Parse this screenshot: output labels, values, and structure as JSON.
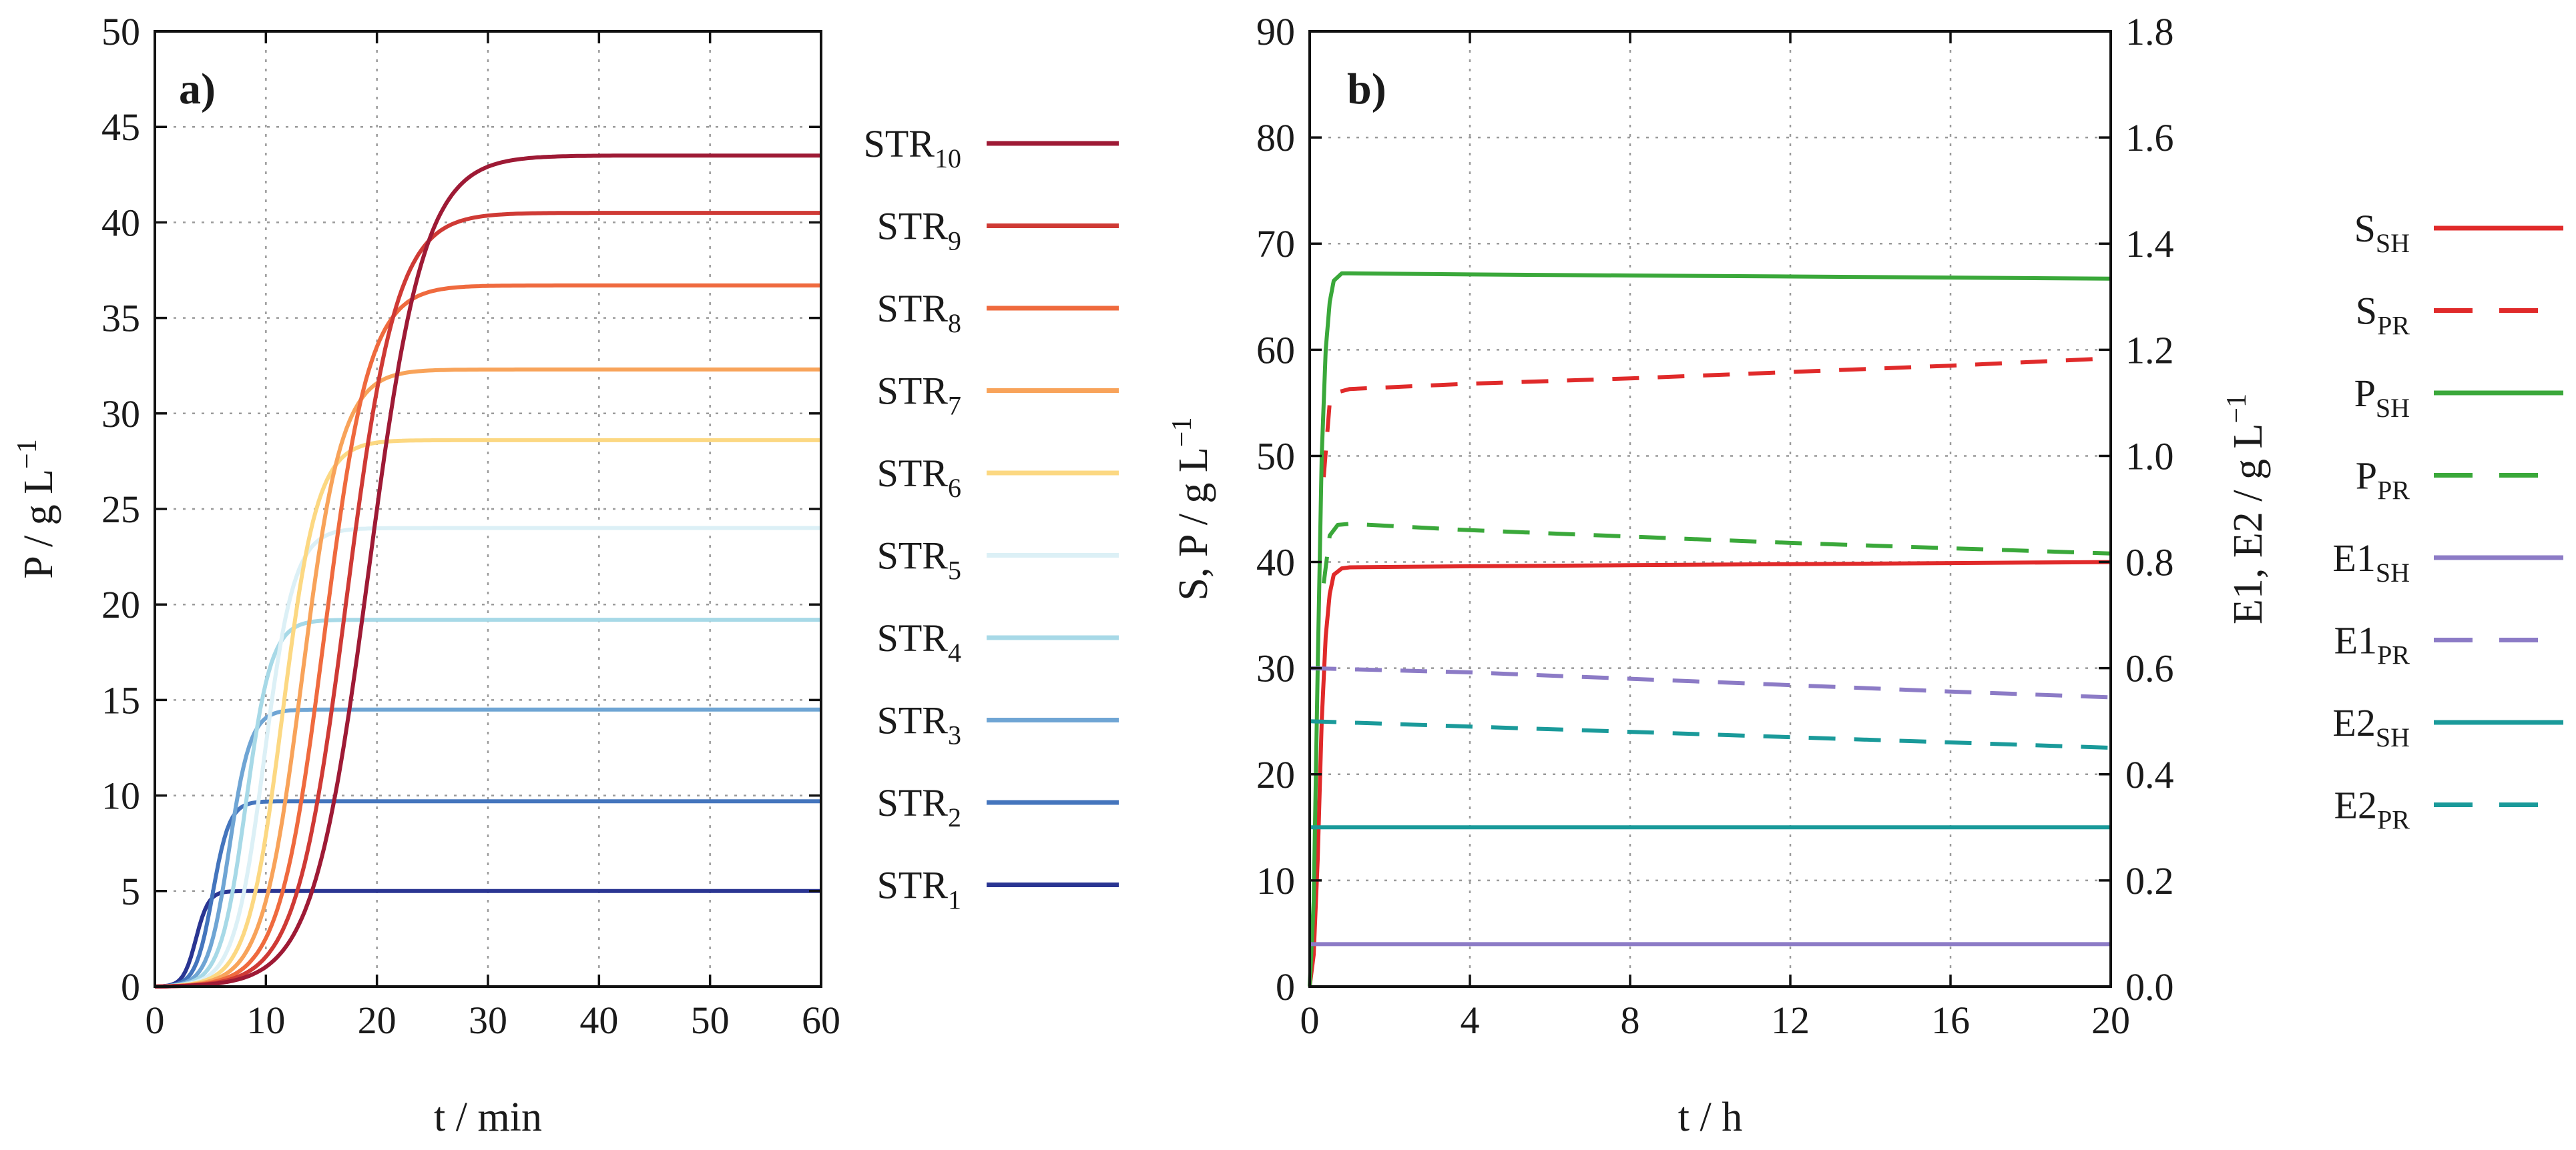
{
  "chart_data": [
    {
      "type": "line",
      "panel_label": "a)",
      "xlabel": "t / min",
      "ylabel": "P / g L−1",
      "xlim": [
        0,
        60
      ],
      "ylim": [
        0,
        50
      ],
      "x_ticks": [
        0,
        10,
        20,
        30,
        40,
        50,
        60
      ],
      "y_ticks": [
        0,
        5,
        10,
        15,
        20,
        25,
        30,
        35,
        40,
        45,
        50
      ],
      "grid": true,
      "legend_position": "right",
      "series": [
        {
          "name": "STR",
          "sub": "10",
          "color": "#9e1a35",
          "plateau": 43.5,
          "delay": 14.0,
          "width": 10.5
        },
        {
          "name": "STR",
          "sub": "9",
          "color": "#cf3a35",
          "plateau": 40.5,
          "delay": 12.5,
          "width": 9.5
        },
        {
          "name": "STR",
          "sub": "8",
          "color": "#ef6a3e",
          "plateau": 36.7,
          "delay": 11.0,
          "width": 8.5
        },
        {
          "name": "STR",
          "sub": "7",
          "color": "#f8a35a",
          "plateau": 32.3,
          "delay": 9.5,
          "width": 7.5
        },
        {
          "name": "STR",
          "sub": "6",
          "color": "#fcd882",
          "plateau": 28.6,
          "delay": 8.2,
          "width": 6.6
        },
        {
          "name": "STR",
          "sub": "5",
          "color": "#dcf0f6",
          "plateau": 24.0,
          "delay": 7.0,
          "width": 5.7
        },
        {
          "name": "STR",
          "sub": "4",
          "color": "#a7d9e7",
          "plateau": 19.2,
          "delay": 5.8,
          "width": 4.8
        },
        {
          "name": "STR",
          "sub": "3",
          "color": "#6fa5d4",
          "plateau": 14.5,
          "delay": 4.7,
          "width": 4.0
        },
        {
          "name": "STR",
          "sub": "2",
          "color": "#4475bd",
          "plateau": 9.7,
          "delay": 3.6,
          "width": 3.2
        },
        {
          "name": "STR",
          "sub": "1",
          "color": "#2a3592",
          "plateau": 5.0,
          "delay": 2.5,
          "width": 2.4
        }
      ]
    },
    {
      "type": "line",
      "panel_label": "b)",
      "xlabel": "t / h",
      "ylabel": "S, P / g L−1",
      "y2label": "E1, E2 / g L−1",
      "xlim": [
        0,
        20
      ],
      "ylim": [
        0,
        90
      ],
      "y2lim": [
        0,
        1.8
      ],
      "x_ticks": [
        0,
        4,
        8,
        12,
        16,
        20
      ],
      "y_ticks": [
        0,
        10,
        20,
        30,
        40,
        50,
        60,
        70,
        80,
        90
      ],
      "y2_ticks": [
        "0.0",
        "0.2",
        "0.4",
        "0.6",
        "0.8",
        "1.0",
        "1.2",
        "1.4",
        "1.6",
        "1.8"
      ],
      "grid": true,
      "legend_position": "right",
      "series": [
        {
          "name": "S",
          "sub": "SH",
          "color": "#e02a2a",
          "style": "solid",
          "axis": "left",
          "points": [
            [
              0,
              0
            ],
            [
              0.1,
              3
            ],
            [
              0.2,
              12
            ],
            [
              0.3,
              25
            ],
            [
              0.4,
              33
            ],
            [
              0.5,
              37
            ],
            [
              0.6,
              38.8
            ],
            [
              0.8,
              39.4
            ],
            [
              1,
              39.5
            ],
            [
              4,
              39.6
            ],
            [
              8,
              39.7
            ],
            [
              12,
              39.8
            ],
            [
              16,
              39.9
            ],
            [
              20,
              40.0
            ]
          ]
        },
        {
          "name": "S",
          "sub": "PR",
          "color": "#e02a2a",
          "style": "dashed",
          "axis": "left",
          "points": [
            [
              0.35,
              48
            ],
            [
              0.5,
              55
            ],
            [
              0.7,
              56
            ],
            [
              1,
              56.3
            ],
            [
              4,
              56.8
            ],
            [
              8,
              57.3
            ],
            [
              12,
              57.9
            ],
            [
              16,
              58.5
            ],
            [
              20,
              59.2
            ]
          ]
        },
        {
          "name": "P",
          "sub": "SH",
          "color": "#3aa83a",
          "style": "solid",
          "axis": "left",
          "points": [
            [
              0,
              0
            ],
            [
              0.1,
              8
            ],
            [
              0.2,
              30
            ],
            [
              0.3,
              50
            ],
            [
              0.4,
              60
            ],
            [
              0.5,
              64.5
            ],
            [
              0.6,
              66.5
            ],
            [
              0.8,
              67.2
            ],
            [
              1,
              67.2
            ],
            [
              4,
              67.1
            ],
            [
              8,
              67.0
            ],
            [
              12,
              66.9
            ],
            [
              16,
              66.8
            ],
            [
              20,
              66.7
            ]
          ]
        },
        {
          "name": "P",
          "sub": "PR",
          "color": "#3aa83a",
          "style": "dashed",
          "axis": "left",
          "points": [
            [
              0.35,
              38
            ],
            [
              0.5,
              42.5
            ],
            [
              0.7,
              43.5
            ],
            [
              1,
              43.6
            ],
            [
              4,
              43
            ],
            [
              8,
              42.4
            ],
            [
              12,
              41.8
            ],
            [
              16,
              41.3
            ],
            [
              20,
              40.8
            ]
          ]
        },
        {
          "name": "E1",
          "sub": "SH",
          "color": "#8c7bc6",
          "style": "solid",
          "axis": "right",
          "points": [
            [
              0,
              0.08
            ],
            [
              20,
              0.08
            ]
          ]
        },
        {
          "name": "E1",
          "sub": "PR",
          "color": "#8c7bc6",
          "style": "dashed",
          "axis": "right",
          "points": [
            [
              0,
              0.6
            ],
            [
              4,
              0.592
            ],
            [
              8,
              0.58
            ],
            [
              12,
              0.568
            ],
            [
              16,
              0.556
            ],
            [
              20,
              0.545
            ]
          ]
        },
        {
          "name": "E2",
          "sub": "SH",
          "color": "#1a9a9a",
          "style": "solid",
          "axis": "right",
          "points": [
            [
              0,
              0.3
            ],
            [
              20,
              0.3
            ]
          ]
        },
        {
          "name": "E2",
          "sub": "PR",
          "color": "#1a9a9a",
          "style": "dashed",
          "axis": "right",
          "points": [
            [
              0,
              0.5
            ],
            [
              4,
              0.49
            ],
            [
              8,
              0.48
            ],
            [
              12,
              0.47
            ],
            [
              16,
              0.46
            ],
            [
              20,
              0.45
            ]
          ]
        }
      ]
    }
  ]
}
